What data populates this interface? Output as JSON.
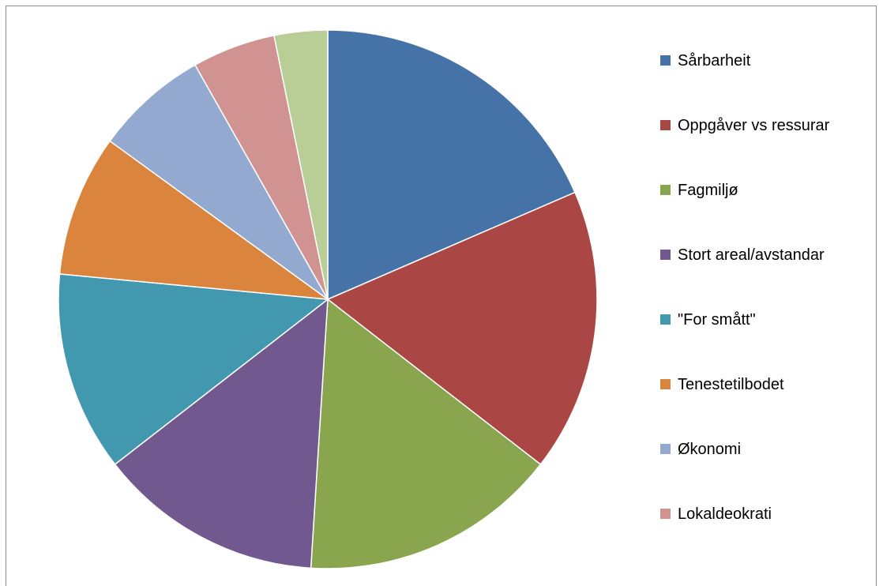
{
  "chart_data": {
    "type": "pie",
    "title": "",
    "categories": [
      "Sårbarheit",
      "Oppgåver vs ressurar",
      "Fagmiljø",
      "Stort areal/avstandar",
      "\"For smått\"",
      "Tenestetilbodet",
      "Økonomi",
      "Lokaldeokrati",
      ""
    ],
    "values": [
      18.5,
      17.0,
      15.5,
      13.5,
      12.0,
      8.5,
      6.8,
      5.0,
      3.2
    ],
    "colors": [
      "#4572A7",
      "#AA4643",
      "#89A54E",
      "#71588F",
      "#4198AF",
      "#DB843D",
      "#93A9CF",
      "#D19392",
      "#B9CD96"
    ],
    "legend_position": "right",
    "legend": [
      {
        "label": "Sårbarheit",
        "color": "#4572A7"
      },
      {
        "label": "Oppgåver vs ressurar",
        "color": "#AA4643"
      },
      {
        "label": "Fagmiljø",
        "color": "#89A54E"
      },
      {
        "label": "Stort areal/avstandar",
        "color": "#71588F"
      },
      {
        "label": "\"For smått\"",
        "color": "#4198AF"
      },
      {
        "label": "Tenestetilbodet",
        "color": "#DB843D"
      },
      {
        "label": "Økonomi",
        "color": "#93A9CF"
      },
      {
        "label": "Lokaldeokrati",
        "color": "#D19392"
      }
    ]
  }
}
